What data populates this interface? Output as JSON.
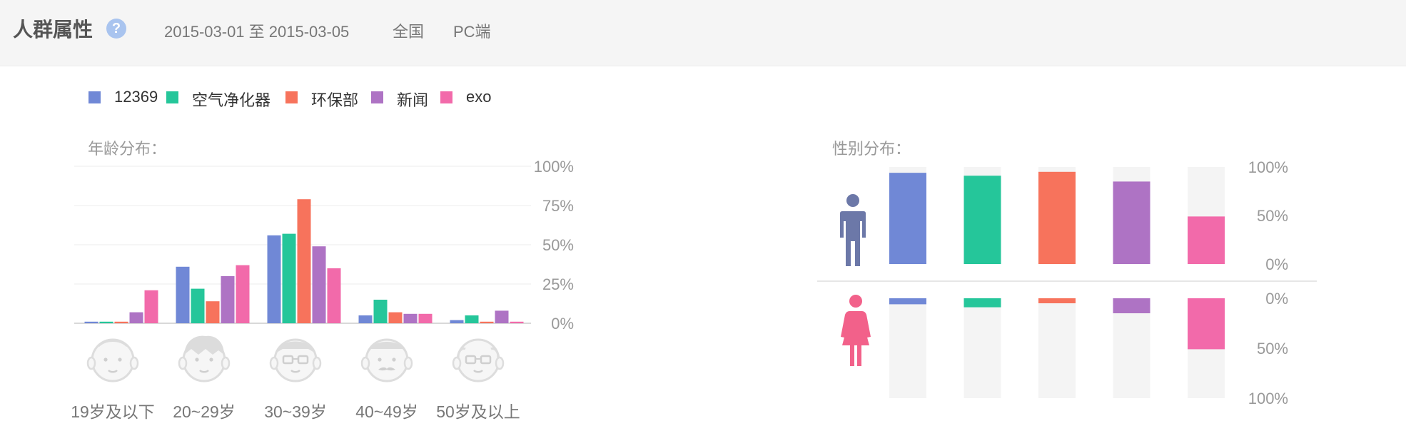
{
  "header": {
    "title": "人群属性",
    "help_icon": "?",
    "date_range": "2015-03-01 至 2015-03-05",
    "region": "全国",
    "device": "PC端"
  },
  "legend": [
    {
      "name": "12369",
      "color": "#7088d6"
    },
    {
      "name": "空气净化器",
      "color": "#25c69a"
    },
    {
      "name": "环保部",
      "color": "#f7735c"
    },
    {
      "name": "新闻",
      "color": "#ae73c4"
    },
    {
      "name": "exo",
      "color": "#f26aaa"
    }
  ],
  "age_section": {
    "title": "年龄分布："
  },
  "gender_section": {
    "title": "性别分布："
  },
  "chart_data": [
    {
      "type": "bar",
      "title": "年龄分布：",
      "categories": [
        "19岁及以下",
        "20~29岁",
        "30~39岁",
        "40~49岁",
        "50岁及以上"
      ],
      "y_ticks": [
        "100%",
        "75%",
        "50%",
        "25%",
        "0%"
      ],
      "ylim": [
        0,
        100
      ],
      "grid": true,
      "category_icons": [
        "child-face-icon",
        "young-face-icon",
        "glasses-face-icon",
        "mustache-face-icon",
        "elder-face-icon"
      ],
      "series": [
        {
          "name": "12369",
          "color": "#7088d6",
          "values": [
            1,
            36,
            56,
            5,
            2
          ]
        },
        {
          "name": "空气净化器",
          "color": "#25c69a",
          "values": [
            1,
            22,
            57,
            15,
            5
          ]
        },
        {
          "name": "环保部",
          "color": "#f7735c",
          "values": [
            1,
            14,
            79,
            7,
            1
          ]
        },
        {
          "name": "新闻",
          "color": "#ae73c4",
          "values": [
            7,
            30,
            49,
            6,
            8
          ]
        },
        {
          "name": "exo",
          "color": "#f26aaa",
          "values": [
            21,
            37,
            35,
            6,
            1
          ]
        }
      ]
    },
    {
      "type": "bar",
      "title": "性别分布：",
      "male_ticks": [
        "100%",
        "50%",
        "0%"
      ],
      "female_ticks": [
        "0%",
        "50%",
        "100%"
      ],
      "ylim": [
        0,
        100
      ],
      "series": [
        {
          "name": "12369",
          "color": "#7088d6",
          "male": 94,
          "female": 6
        },
        {
          "name": "空气净化器",
          "color": "#25c69a",
          "male": 91,
          "female": 9
        },
        {
          "name": "环保部",
          "color": "#f7735c",
          "male": 95,
          "female": 5
        },
        {
          "name": "新闻",
          "color": "#ae73c4",
          "male": 85,
          "female": 15
        },
        {
          "name": "exo",
          "color": "#f26aaa",
          "male": 49,
          "female": 51
        }
      ]
    }
  ]
}
